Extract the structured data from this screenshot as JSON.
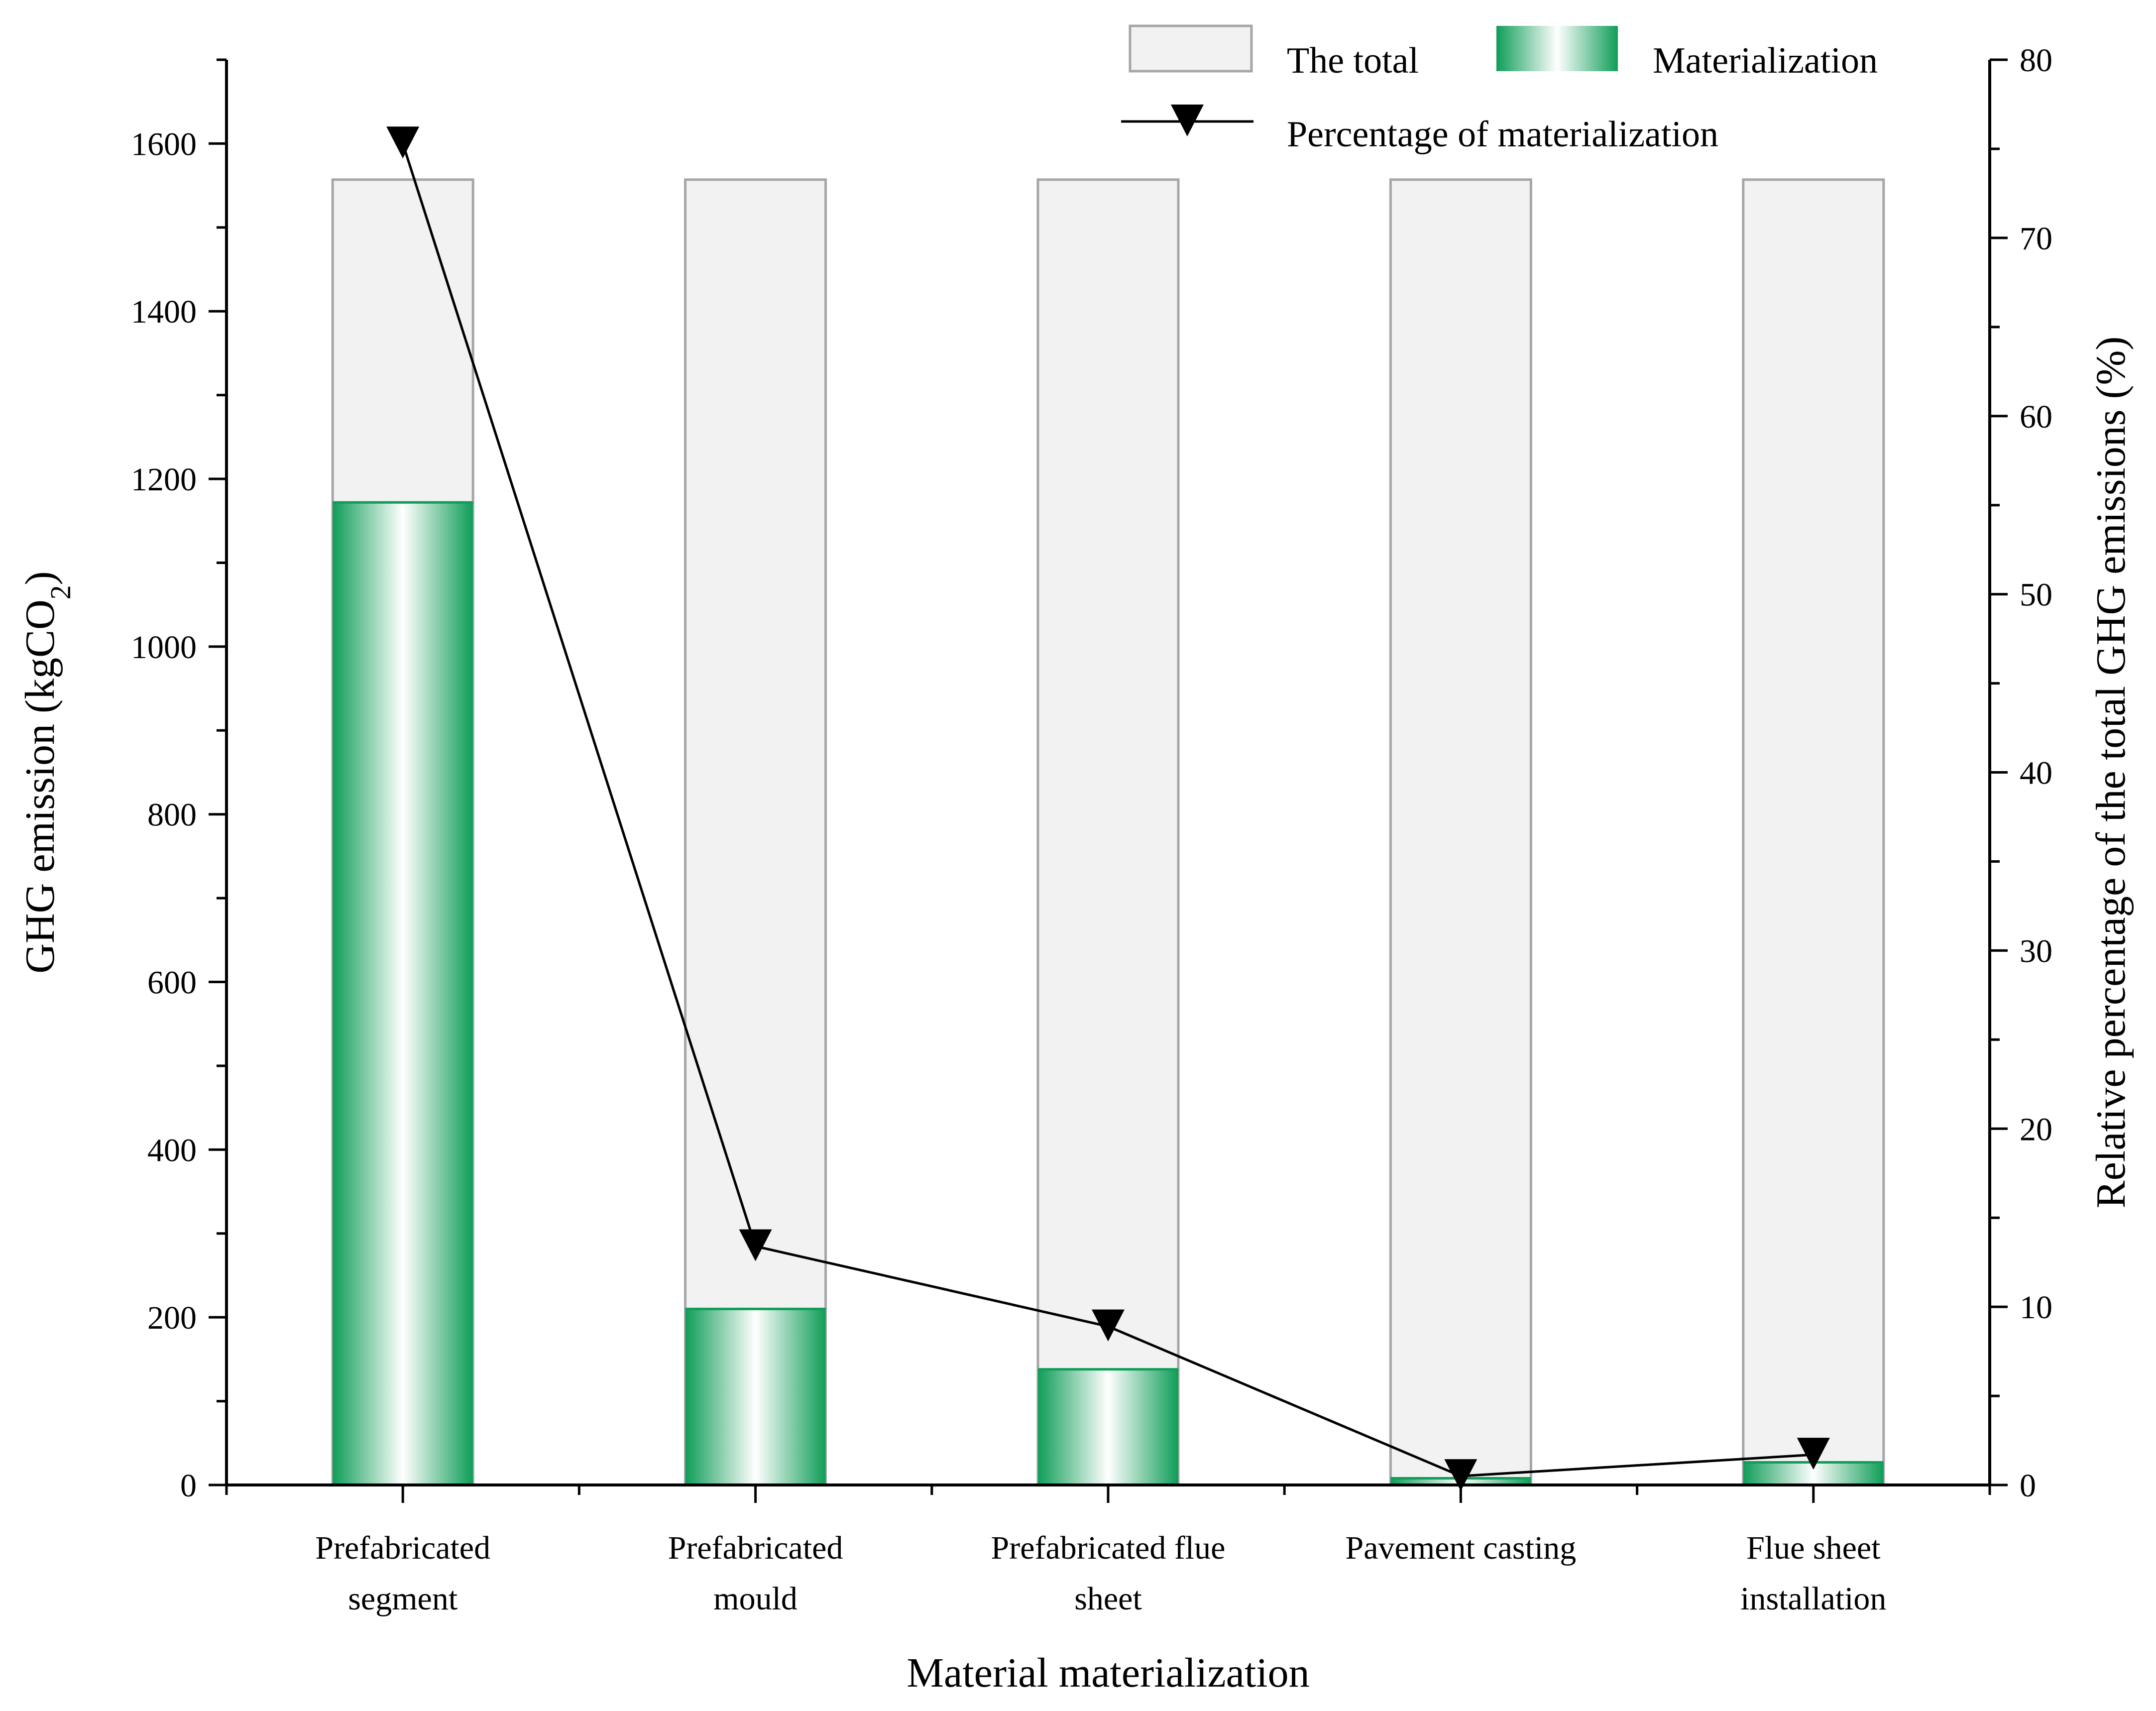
{
  "chart_data": {
    "type": "bar",
    "xlabel": "Material materialization",
    "ylabel": "GHG emission (kgCO2)",
    "ylabel_right": "Relative percentage of the total GHG emissions (%)",
    "categories": [
      [
        "Prefabricated",
        "segment"
      ],
      [
        "Prefabricated",
        "mould"
      ],
      [
        "Prefabricated flue",
        "sheet"
      ],
      [
        "Pavement casting"
      ],
      [
        "Flue sheet",
        "installation"
      ]
    ],
    "ylim": [
      0,
      1700
    ],
    "yticks": [
      0,
      200,
      400,
      600,
      800,
      1000,
      1200,
      1400,
      1600
    ],
    "y2lim": [
      0,
      80
    ],
    "y2ticks": [
      0,
      10,
      20,
      30,
      40,
      50,
      60,
      70,
      80
    ],
    "grid": false,
    "legend_position": "top",
    "series": [
      {
        "name": "The total",
        "type": "bar",
        "axis": "left",
        "values": [
          1557,
          1557,
          1557,
          1557,
          1557
        ]
      },
      {
        "name": "Materialization",
        "type": "bar",
        "axis": "left",
        "values": [
          1172,
          210,
          138,
          8,
          27
        ]
      },
      {
        "name": "Percentage of materialization",
        "type": "line",
        "axis": "right",
        "marker": "down-triangle",
        "values": [
          75.3,
          13.4,
          8.9,
          0.5,
          1.7
        ]
      }
    ],
    "colors": {
      "total_fill": "#f2f2f2",
      "total_stroke": "#a6a6a6",
      "materialization": "#0f9d58",
      "line": "#000000"
    }
  }
}
